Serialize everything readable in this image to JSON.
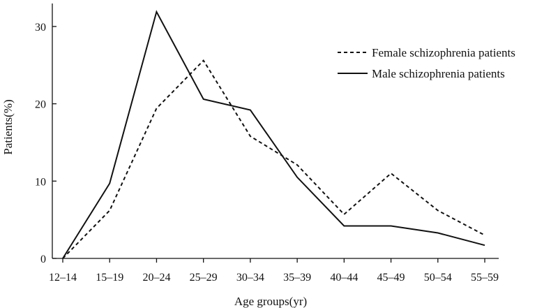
{
  "chart_data": {
    "type": "line",
    "title": "",
    "xlabel": "Age groups(yr)",
    "ylabel": "Patients(%)",
    "categories": [
      "12–14",
      "15–19",
      "20–24",
      "25–29",
      "30–34",
      "35–39",
      "40–44",
      "45–49",
      "50–54",
      "55–59"
    ],
    "ylim": [
      0,
      33
    ],
    "yticks": [
      0,
      10,
      20,
      30
    ],
    "grid": false,
    "legend_position": "top-right",
    "series": [
      {
        "name": "Female schizophrenia patients",
        "style": "dashed",
        "color": "#111111",
        "values": [
          0,
          6.2,
          19.4,
          25.6,
          15.8,
          12.1,
          5.7,
          11.0,
          6.2,
          3.0
        ]
      },
      {
        "name": "Male schizophrenia patients",
        "style": "solid",
        "color": "#111111",
        "values": [
          0,
          9.7,
          31.9,
          20.6,
          19.2,
          10.5,
          4.2,
          4.2,
          3.3,
          1.7
        ]
      }
    ]
  }
}
